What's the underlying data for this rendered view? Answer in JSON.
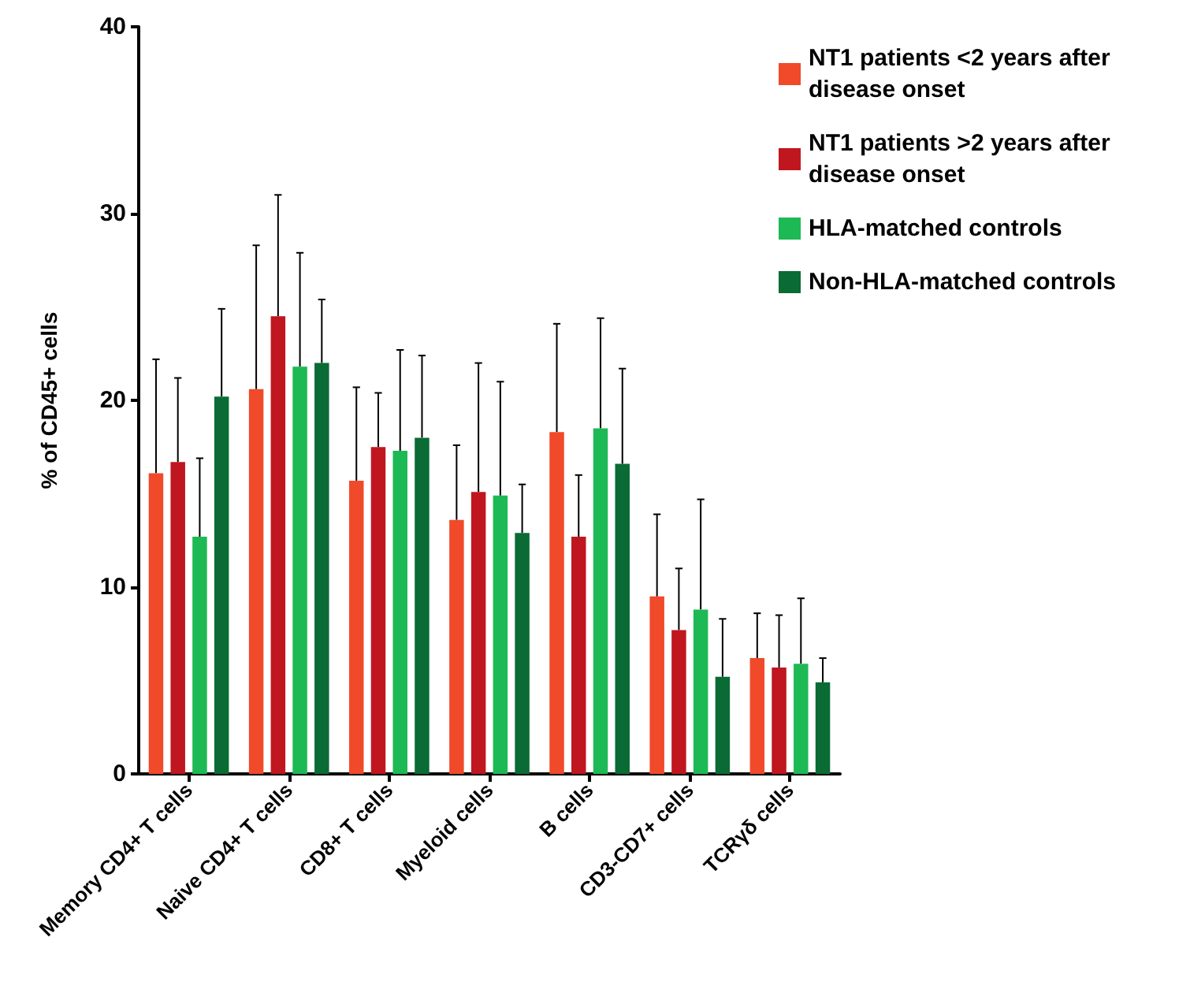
{
  "chart_data": {
    "type": "bar",
    "ylabel": "% of CD45+ cells",
    "categories": [
      "Memory CD4+ T cells",
      "Naive CD4+ T cells",
      "CD8+ T cells",
      "Myeloid cells",
      "B cells",
      "CD3-CD7+ cells",
      "TCRγδ cells"
    ],
    "series": [
      {
        "name": "NT1 patients <2 years after disease onset",
        "color": "#f04a2a",
        "values": [
          16.1,
          20.6,
          15.7,
          13.6,
          18.3,
          9.5,
          6.2
        ],
        "errors": [
          [
            16.1,
            22.2
          ],
          [
            20.6,
            28.3
          ],
          [
            15.7,
            20.7
          ],
          [
            13.6,
            17.6
          ],
          [
            18.3,
            24.1
          ],
          [
            9.5,
            13.9
          ],
          [
            6.2,
            8.6
          ]
        ]
      },
      {
        "name": "NT1 patients >2 years after disease onset",
        "color": "#c0161f",
        "values": [
          16.7,
          24.5,
          17.5,
          15.1,
          12.7,
          7.7,
          5.7
        ],
        "errors": [
          [
            16.7,
            21.2
          ],
          [
            24.5,
            31.0
          ],
          [
            17.5,
            20.4
          ],
          [
            15.1,
            22.0
          ],
          [
            12.7,
            16.0
          ],
          [
            7.7,
            11.0
          ],
          [
            5.7,
            8.5
          ]
        ]
      },
      {
        "name": "HLA-matched controls",
        "color": "#1db954",
        "values": [
          12.7,
          21.8,
          17.3,
          14.9,
          18.5,
          8.8,
          5.9
        ],
        "errors": [
          [
            12.7,
            16.9
          ],
          [
            21.8,
            27.9
          ],
          [
            17.3,
            22.7
          ],
          [
            14.9,
            21.0
          ],
          [
            18.5,
            24.4
          ],
          [
            8.8,
            14.7
          ],
          [
            5.9,
            9.4
          ]
        ]
      },
      {
        "name": "Non-HLA-matched controls",
        "color": "#0a6b35",
        "values": [
          20.2,
          22.0,
          18.0,
          12.9,
          16.6,
          5.2,
          4.9
        ],
        "errors": [
          [
            20.2,
            24.9
          ],
          [
            22.0,
            25.4
          ],
          [
            18.0,
            22.4
          ],
          [
            12.9,
            15.5
          ],
          [
            16.6,
            21.7
          ],
          [
            5.2,
            8.3
          ],
          [
            4.9,
            6.2
          ]
        ]
      }
    ],
    "ylim": [
      0,
      40
    ],
    "yticks": [
      0,
      10,
      20,
      30,
      40
    ],
    "legend": "top right"
  }
}
